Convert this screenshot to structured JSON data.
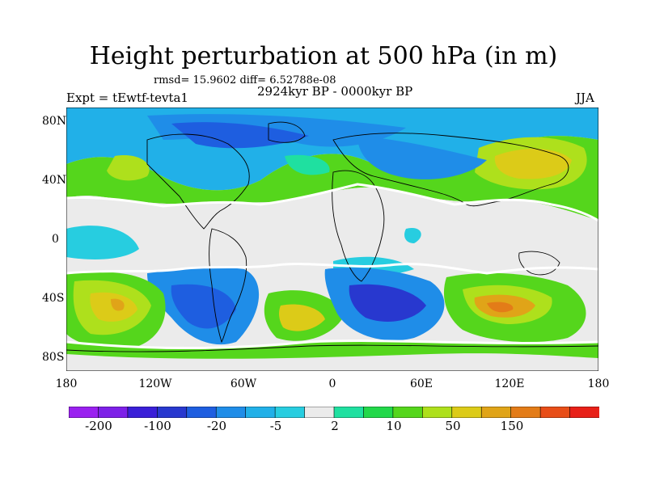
{
  "figure": {
    "title": "Height perturbation at 500 hPa (in m)",
    "stats": "rmsd= 15.9602 diff= 6.52788e-08",
    "left_label": "Expt = tEwtf-tevta1",
    "center_label": "2924kyr BP - 0000kyr BP",
    "right_label": "JJA"
  },
  "axes": {
    "lat_ticks": [
      "80N",
      "40N",
      "0",
      "40S",
      "80S"
    ],
    "lon_ticks": [
      "180",
      "120W",
      "60W",
      "0",
      "60E",
      "120E",
      "180"
    ]
  },
  "colorbar": {
    "colors": [
      "#9a20f0",
      "#7d20e8",
      "#3a1fd8",
      "#2838cf",
      "#1e5ee0",
      "#1f8de8",
      "#21b0e8",
      "#27cde0",
      "#ebebeb",
      "#1fe0a0",
      "#22d84a",
      "#55d61c",
      "#aee01c",
      "#dccb18",
      "#e0a418",
      "#e37c18",
      "#e84e18",
      "#e82018"
    ],
    "labels": [
      "-200",
      "-100",
      "-20",
      "-5",
      "2",
      "10",
      "50",
      "150"
    ]
  }
}
